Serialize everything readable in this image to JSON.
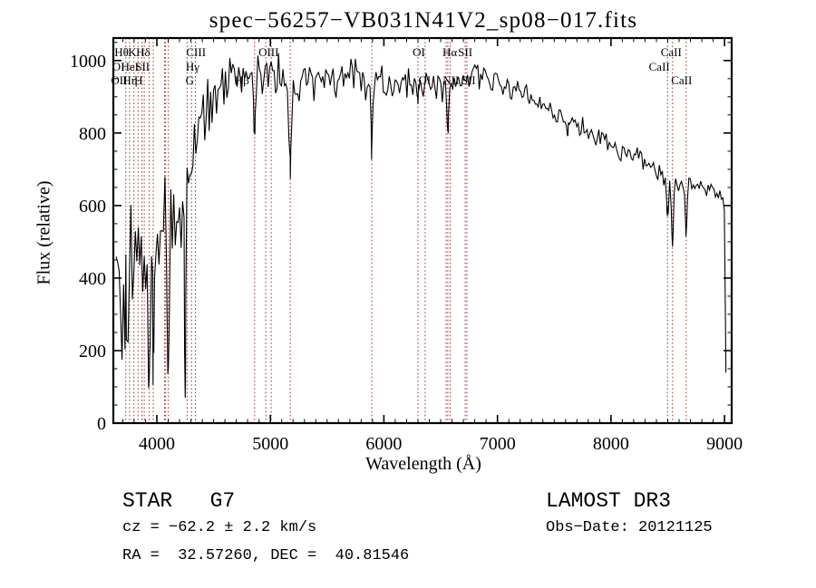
{
  "chart_data": {
    "type": "line",
    "title": "spec−56257−VB031N41V2_sp08−017.fits",
    "xlabel": "Wavelength (Å)",
    "ylabel": "Flux (relative)",
    "xlim": [
      3617,
      9063
    ],
    "ylim": [
      0,
      1062
    ],
    "x_major_ticks": [
      4000,
      5000,
      6000,
      7000,
      8000,
      9000
    ],
    "x_minor_step": 100,
    "y_major_ticks": [
      0,
      200,
      400,
      600,
      800,
      1000
    ],
    "y_minor_step": 50,
    "grid": false,
    "legend": "none",
    "line_color": "#000000",
    "marker_line_color": "#9e3535",
    "marker_lines": [
      3727,
      3760,
      3798,
      3835,
      3869,
      3889,
      3933,
      3968,
      4068,
      4078,
      4102,
      4267,
      4305,
      4340,
      4861,
      4959,
      5007,
      5175,
      5893,
      6300,
      6363,
      6548,
      6563,
      6583,
      6716,
      6731,
      8498,
      8542,
      8662
    ],
    "line_labels": [
      {
        "text": "Hθ",
        "lambda": 3689,
        "row": 1
      },
      {
        "text": "K",
        "lambda": 3784,
        "row": 1
      },
      {
        "text": "Hδ",
        "lambda": 3880,
        "row": 1
      },
      {
        "text": "CIII",
        "lambda": 4345,
        "row": 1
      },
      {
        "text": "OIII",
        "lambda": 4985,
        "row": 1
      },
      {
        "text": "OI",
        "lambda": 6308,
        "row": 1
      },
      {
        "text": "Hα",
        "lambda": 6580,
        "row": 1
      },
      {
        "text": "SII",
        "lambda": 6716,
        "row": 1
      },
      {
        "text": "CaII",
        "lambda": 8530,
        "row": 1
      },
      {
        "text": "OI",
        "lambda": 3662,
        "row": 2
      },
      {
        "text": "HeI",
        "lambda": 3762,
        "row": 2
      },
      {
        "text": "SII",
        "lambda": 3874,
        "row": 2
      },
      {
        "text": "Hγ",
        "lambda": 4315,
        "row": 2
      },
      {
        "text": "CaII",
        "lambda": 8426,
        "row": 2
      },
      {
        "text": "OII",
        "lambda": 3668,
        "row": 3
      },
      {
        "text": "Hη",
        "lambda": 3765,
        "row": 3
      },
      {
        "text": "H",
        "lambda": 3838,
        "row": 3
      },
      {
        "text": "G",
        "lambda": 4290,
        "row": 3
      },
      {
        "text": "Hβ",
        "lambda": 4750,
        "row": 3
      },
      {
        "text": "OI",
        "lambda": 6358,
        "row": 3
      },
      {
        "text": "NII",
        "lambda": 6590,
        "row": 3
      },
      {
        "text": "SII",
        "lambda": 6745,
        "row": 3
      },
      {
        "text": "CaII",
        "lambda": 8622,
        "row": 3
      }
    ],
    "spectrum": {
      "seed": 20,
      "sample_step_angstrom": 13,
      "envelope": [
        [
          3642,
          330,
          185
        ],
        [
          3700,
          355,
          170
        ],
        [
          3750,
          400,
          160
        ],
        [
          3800,
          420,
          150
        ],
        [
          3850,
          430,
          150
        ],
        [
          3900,
          400,
          140
        ],
        [
          3940,
          360,
          130
        ],
        [
          3980,
          430,
          120
        ],
        [
          4020,
          520,
          110
        ],
        [
          4070,
          575,
          105
        ],
        [
          4120,
          590,
          100
        ],
        [
          4170,
          630,
          95
        ],
        [
          4220,
          655,
          100
        ],
        [
          4270,
          645,
          100
        ],
        [
          4320,
          735,
          85
        ],
        [
          4370,
          785,
          70
        ],
        [
          4420,
          835,
          62
        ],
        [
          4470,
          878,
          55
        ],
        [
          4520,
          908,
          50
        ],
        [
          4570,
          935,
          48
        ],
        [
          4620,
          950,
          46
        ],
        [
          4700,
          960,
          43
        ],
        [
          4800,
          955,
          42
        ],
        [
          4900,
          950,
          41
        ],
        [
          5000,
          958,
          40
        ],
        [
          5100,
          950,
          40
        ],
        [
          5200,
          935,
          42
        ],
        [
          5300,
          945,
          40
        ],
        [
          5400,
          948,
          39
        ],
        [
          5500,
          946,
          38
        ],
        [
          5600,
          948,
          37
        ],
        [
          5700,
          946,
          36
        ],
        [
          5800,
          942,
          36
        ],
        [
          5900,
          940,
          35
        ],
        [
          6000,
          938,
          35
        ],
        [
          6100,
          935,
          34
        ],
        [
          6200,
          938,
          33
        ],
        [
          6300,
          936,
          32
        ],
        [
          6400,
          938,
          31
        ],
        [
          6500,
          935,
          30
        ],
        [
          6600,
          940,
          29
        ],
        [
          6700,
          950,
          27
        ],
        [
          6800,
          958,
          25
        ],
        [
          6900,
          958,
          24
        ],
        [
          7000,
          950,
          23
        ],
        [
          7100,
          932,
          22
        ],
        [
          7200,
          915,
          21
        ],
        [
          7300,
          895,
          21
        ],
        [
          7400,
          875,
          20
        ],
        [
          7500,
          855,
          20
        ],
        [
          7600,
          842,
          20
        ],
        [
          7700,
          822,
          19
        ],
        [
          7800,
          810,
          19
        ],
        [
          7900,
          788,
          18
        ],
        [
          8000,
          768,
          18
        ],
        [
          8100,
          752,
          18
        ],
        [
          8200,
          740,
          17
        ],
        [
          8300,
          718,
          17
        ],
        [
          8400,
          695,
          16
        ],
        [
          8470,
          675,
          15
        ],
        [
          8530,
          668,
          14
        ],
        [
          8600,
          662,
          14
        ],
        [
          8660,
          660,
          13
        ],
        [
          8720,
          662,
          13
        ],
        [
          8780,
          655,
          13
        ],
        [
          8840,
          648,
          13
        ],
        [
          8890,
          638,
          13
        ],
        [
          8930,
          622,
          12
        ],
        [
          8965,
          628,
          12
        ],
        [
          8990,
          615,
          10
        ],
        [
          9002,
          560,
          20
        ],
        [
          9008,
          300,
          25
        ],
        [
          9012,
          140,
          12
        ]
      ],
      "absorption_dips": [
        [
          3727,
          8,
          120
        ],
        [
          3933,
          9,
          175
        ],
        [
          3968,
          9,
          150
        ],
        [
          4102,
          6,
          420
        ],
        [
          4250,
          6,
          520
        ],
        [
          4861,
          8,
          150
        ],
        [
          5175,
          12,
          210
        ],
        [
          5893,
          7,
          165
        ],
        [
          6300,
          5,
          55
        ],
        [
          6563,
          8,
          135
        ],
        [
          7620,
          25,
          30
        ],
        [
          8498,
          7,
          112
        ],
        [
          8542,
          8,
          172
        ],
        [
          8662,
          8,
          135
        ]
      ]
    }
  },
  "annotations": {
    "class_label": "STAR   G7",
    "cz_label": "cz = −62.2 ± 2.2 km/s",
    "radec_label": "RA =  32.57260, DEC =  40.81546",
    "survey_label": "LAMOST DR3",
    "obsdate_label": "Obs−Date: 20121125"
  }
}
